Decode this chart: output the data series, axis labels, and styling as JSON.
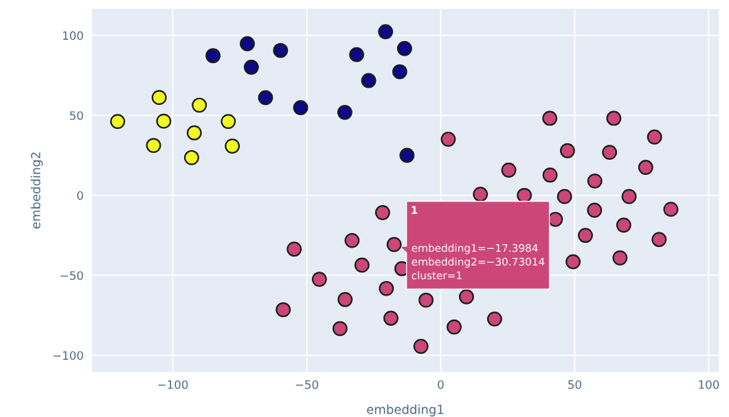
{
  "chart_data": {
    "type": "scatter",
    "xlabel": "embedding1",
    "ylabel": "embedding2",
    "xlim": [
      -130.4,
      104
    ],
    "ylim": [
      -110.7,
      117
    ],
    "xticks": [
      {
        "value": -100,
        "label": "−100"
      },
      {
        "value": -50,
        "label": "−50"
      },
      0,
      50,
      100
    ],
    "yticks": [
      {
        "value": -100,
        "label": "−100"
      },
      {
        "value": -50,
        "label": "−50"
      },
      0,
      50,
      100
    ],
    "grid": true,
    "marker": "circle",
    "series": [
      {
        "color": "#cc4778",
        "x": [
          2.8,
          40.7,
          64.6,
          79.8,
          47.3,
          63.0,
          76.5,
          25.4,
          40.8,
          57.5,
          14.8,
          31.2,
          46.2,
          70.3,
          -21.7,
          57.4,
          85.9,
          42.8,
          68.3,
          -17.3984,
          54.0,
          81.5,
          49.4,
          66.9,
          -29.4,
          -14.5,
          -54.7,
          -33.1,
          -45.3,
          -20.3,
          -35.7,
          -5.5,
          9.6,
          -58.8,
          -18.6,
          20.1,
          -37.6,
          5.0,
          -7.4
        ],
        "values": [
          35.1,
          48.2,
          48.2,
          36.5,
          27.9,
          26.9,
          17.5,
          15.8,
          12.7,
          9.0,
          0.7,
          0,
          -0.7,
          -0.7,
          -10.8,
          -9.3,
          -8.7,
          -15.0,
          -18.6,
          -30.73014,
          -25.0,
          -27.6,
          -41.5,
          -39.1,
          -43.6,
          -45.8,
          -33.6,
          -28.2,
          -52.5,
          -58.2,
          -65.1,
          -65.5,
          -63.4,
          -71.5,
          -76.8,
          -77.3,
          -83.3,
          -82.3,
          -94.4
        ]
      },
      {
        "color": "#0d0887",
        "x": [
          -85.0,
          -72.2,
          -70.7,
          -59.8,
          -65.4,
          -52.3,
          -35.8,
          -31.4,
          -26.9,
          -20.6,
          -13.5,
          -15.3,
          -12.6
        ],
        "values": [
          87.3,
          94.8,
          80.1,
          90.6,
          61.1,
          54.8,
          51.9,
          88.0,
          71.8,
          102.3,
          91.8,
          77.3,
          25.0
        ]
      },
      {
        "color": "#f0f921",
        "x": [
          -120.6,
          -105.1,
          -103.4,
          -107.2,
          -90.1,
          -92.0,
          -93.0,
          -79.3,
          -77.8
        ],
        "values": [
          46.2,
          61.2,
          46.4,
          31.2,
          56.4,
          39.1,
          23.6,
          46.2,
          30.8
        ]
      }
    ],
    "annotations": [
      "1",
      {
        "text": "embedding1=−17.3984\nembedding2=−30.73014\ncluster=1",
        "x": -17.3984,
        "y": -30.73014
      }
    ]
  }
}
